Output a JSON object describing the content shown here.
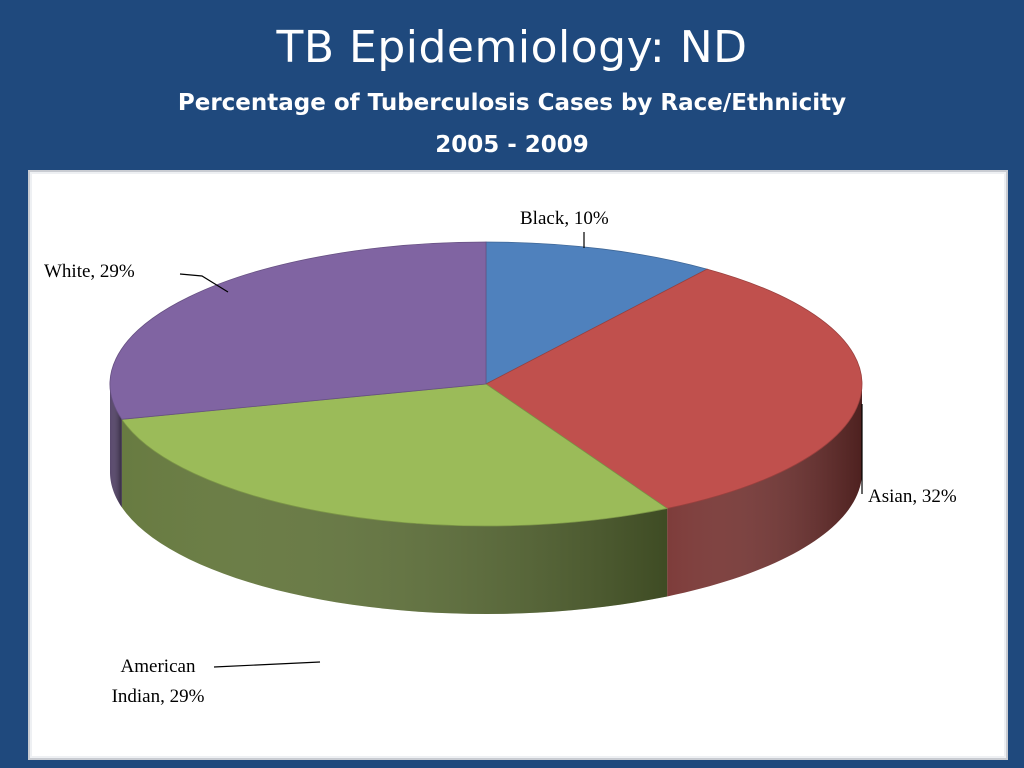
{
  "slide": {
    "title": "TB Epidemiology: ND",
    "subtitle_line1": "Percentage of Tuberculosis Cases by Race/Ethnicity",
    "subtitle_line2": "2005 - 2009"
  },
  "chart_data": {
    "type": "pie",
    "title": "Percentage of Tuberculosis Cases by Race/Ethnicity 2005 - 2009",
    "categories": [
      "Black",
      "Asian",
      "American Indian",
      "White"
    ],
    "values": [
      10,
      32,
      29,
      29
    ],
    "unit": "%",
    "colors": [
      "#4f81bd",
      "#c0504d",
      "#9bbb59",
      "#8064a2"
    ],
    "labels": [
      {
        "lines": [
          "Black, 10%"
        ]
      },
      {
        "lines": [
          "Asian, 32%"
        ]
      },
      {
        "lines": [
          "American",
          "Indian, 29%"
        ]
      },
      {
        "lines": [
          "White, 29%"
        ]
      }
    ],
    "legend": "none",
    "style": "3d-pie"
  }
}
